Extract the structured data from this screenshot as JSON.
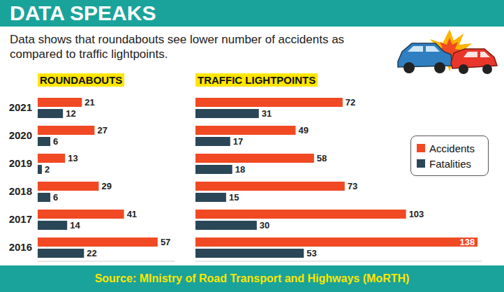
{
  "title": "DATA SPEAKS",
  "subtitle": "Data shows that roundabouts see lower number of accidents as compared to traffic lightpoints.",
  "source": "Source: MInistry of Road Transport and Highways (MoRTH)",
  "chart_data": [
    {
      "type": "bar",
      "title": "ROUNDABOUTS",
      "orientation": "horizontal",
      "categories": [
        "2021",
        "2020",
        "2019",
        "2018",
        "2017",
        "2016"
      ],
      "series": [
        {
          "name": "Accidents",
          "color": "#f04923",
          "values": [
            21,
            27,
            13,
            29,
            41,
            57
          ]
        },
        {
          "name": "Fatalities",
          "color": "#2b4657",
          "values": [
            12,
            6,
            2,
            6,
            14,
            22
          ]
        }
      ],
      "xlim": [
        0,
        65
      ],
      "data_labels": true,
      "tick_labels": "y"
    },
    {
      "type": "bar",
      "title": "TRAFFIC LIGHTPOINTS",
      "orientation": "horizontal",
      "categories": [
        "2021",
        "2020",
        "2019",
        "2018",
        "2017",
        "2016"
      ],
      "series": [
        {
          "name": "Accidents",
          "color": "#f04923",
          "values": [
            72,
            49,
            58,
            73,
            103,
            138
          ]
        },
        {
          "name": "Fatalities",
          "color": "#2b4657",
          "values": [
            31,
            17,
            18,
            15,
            30,
            53
          ]
        }
      ],
      "xlim": [
        0,
        140
      ],
      "data_labels": true,
      "tick_labels": false,
      "legend": "right"
    }
  ]
}
